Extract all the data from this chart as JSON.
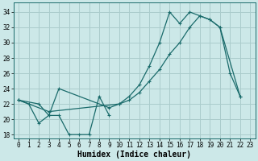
{
  "background_color": "#cce8e8",
  "grid_color": "#aacccc",
  "line_color": "#1a6b6b",
  "xlabel": "Humidex (Indice chaleur)",
  "xlabel_fontsize": 7,
  "tick_fontsize": 5.5,
  "ylim": [
    17.5,
    35.2
  ],
  "xlim": [
    -0.5,
    23.5
  ],
  "yticks": [
    18,
    20,
    22,
    24,
    26,
    28,
    30,
    32,
    34
  ],
  "xticks": [
    0,
    1,
    2,
    3,
    4,
    5,
    6,
    7,
    8,
    9,
    10,
    11,
    12,
    13,
    14,
    15,
    16,
    17,
    18,
    19,
    20,
    21,
    22,
    23
  ],
  "line_jagged_x": [
    0,
    1,
    2,
    3,
    4,
    5,
    6,
    7,
    8,
    9
  ],
  "line_jagged_y": [
    22.5,
    22.0,
    19.5,
    20.5,
    20.5,
    18.0,
    18.0,
    18.0,
    23.0,
    20.5
  ],
  "line_diag_x": [
    0,
    3,
    10,
    11,
    12,
    13,
    14,
    15,
    16,
    17,
    18,
    19,
    20,
    22
  ],
  "line_diag_y": [
    22.5,
    21.0,
    22.0,
    22.5,
    23.5,
    25.0,
    26.5,
    28.5,
    30.0,
    32.0,
    33.5,
    33.0,
    32.0,
    23.0
  ],
  "line_upper_x": [
    0,
    2,
    3,
    4,
    9,
    10,
    11,
    12,
    13,
    14,
    15,
    16,
    17,
    18,
    19,
    20,
    21,
    22
  ],
  "line_upper_y": [
    22.5,
    22.0,
    20.5,
    24.0,
    21.5,
    22.0,
    23.0,
    24.5,
    27.0,
    30.0,
    34.0,
    32.5,
    34.0,
    33.5,
    33.0,
    32.0,
    26.0,
    23.0
  ]
}
